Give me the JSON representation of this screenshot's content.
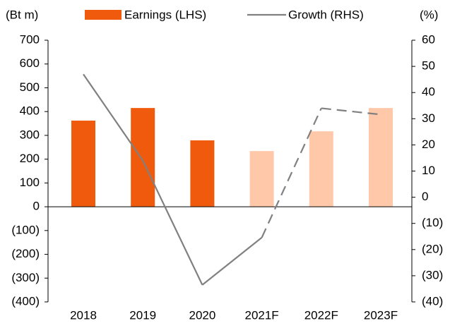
{
  "chart_data": {
    "type": "bar_line",
    "y_unit": "(Bt m)",
    "y2_unit": "(%)",
    "categories": [
      "2018",
      "2019",
      "2020",
      "2021F",
      "2022F",
      "2023F"
    ],
    "series": [
      {
        "name": "Earnings (LHS)",
        "color": "#f05a0c",
        "colors": [
          "#f05a0c",
          "#f05a0c",
          "#f05a0c",
          "#ffc8a8",
          "#ffc8a8",
          "#ffc8a8"
        ],
        "values": [
          362,
          415,
          279,
          234,
          317,
          415
        ]
      },
      {
        "name": "Growth (RHS)",
        "axis": "y2",
        "color": "#808080",
        "segment_styles": [
          "solid",
          "solid",
          "solid",
          "dashed",
          "dashed"
        ],
        "values": [
          47,
          14,
          -33.5,
          -15.4,
          34,
          31.6
        ]
      }
    ],
    "ylim": [
      -400,
      700
    ],
    "yticks": [
      {
        "value": -400,
        "label": "(400)"
      },
      {
        "value": -300,
        "label": "(300)"
      },
      {
        "value": -200,
        "label": "(200)"
      },
      {
        "value": -100,
        "label": "(100)"
      },
      0,
      100,
      200,
      300,
      400,
      500,
      600,
      700
    ],
    "y2lim": [
      -40,
      60
    ],
    "y2ticks": [
      {
        "value": -40,
        "label": "(40)"
      },
      {
        "value": -30,
        "label": "(30)"
      },
      {
        "value": -20,
        "label": "(20)"
      },
      {
        "value": -10,
        "label": "(10)"
      },
      0,
      10,
      20,
      30,
      40,
      50,
      60
    ]
  }
}
